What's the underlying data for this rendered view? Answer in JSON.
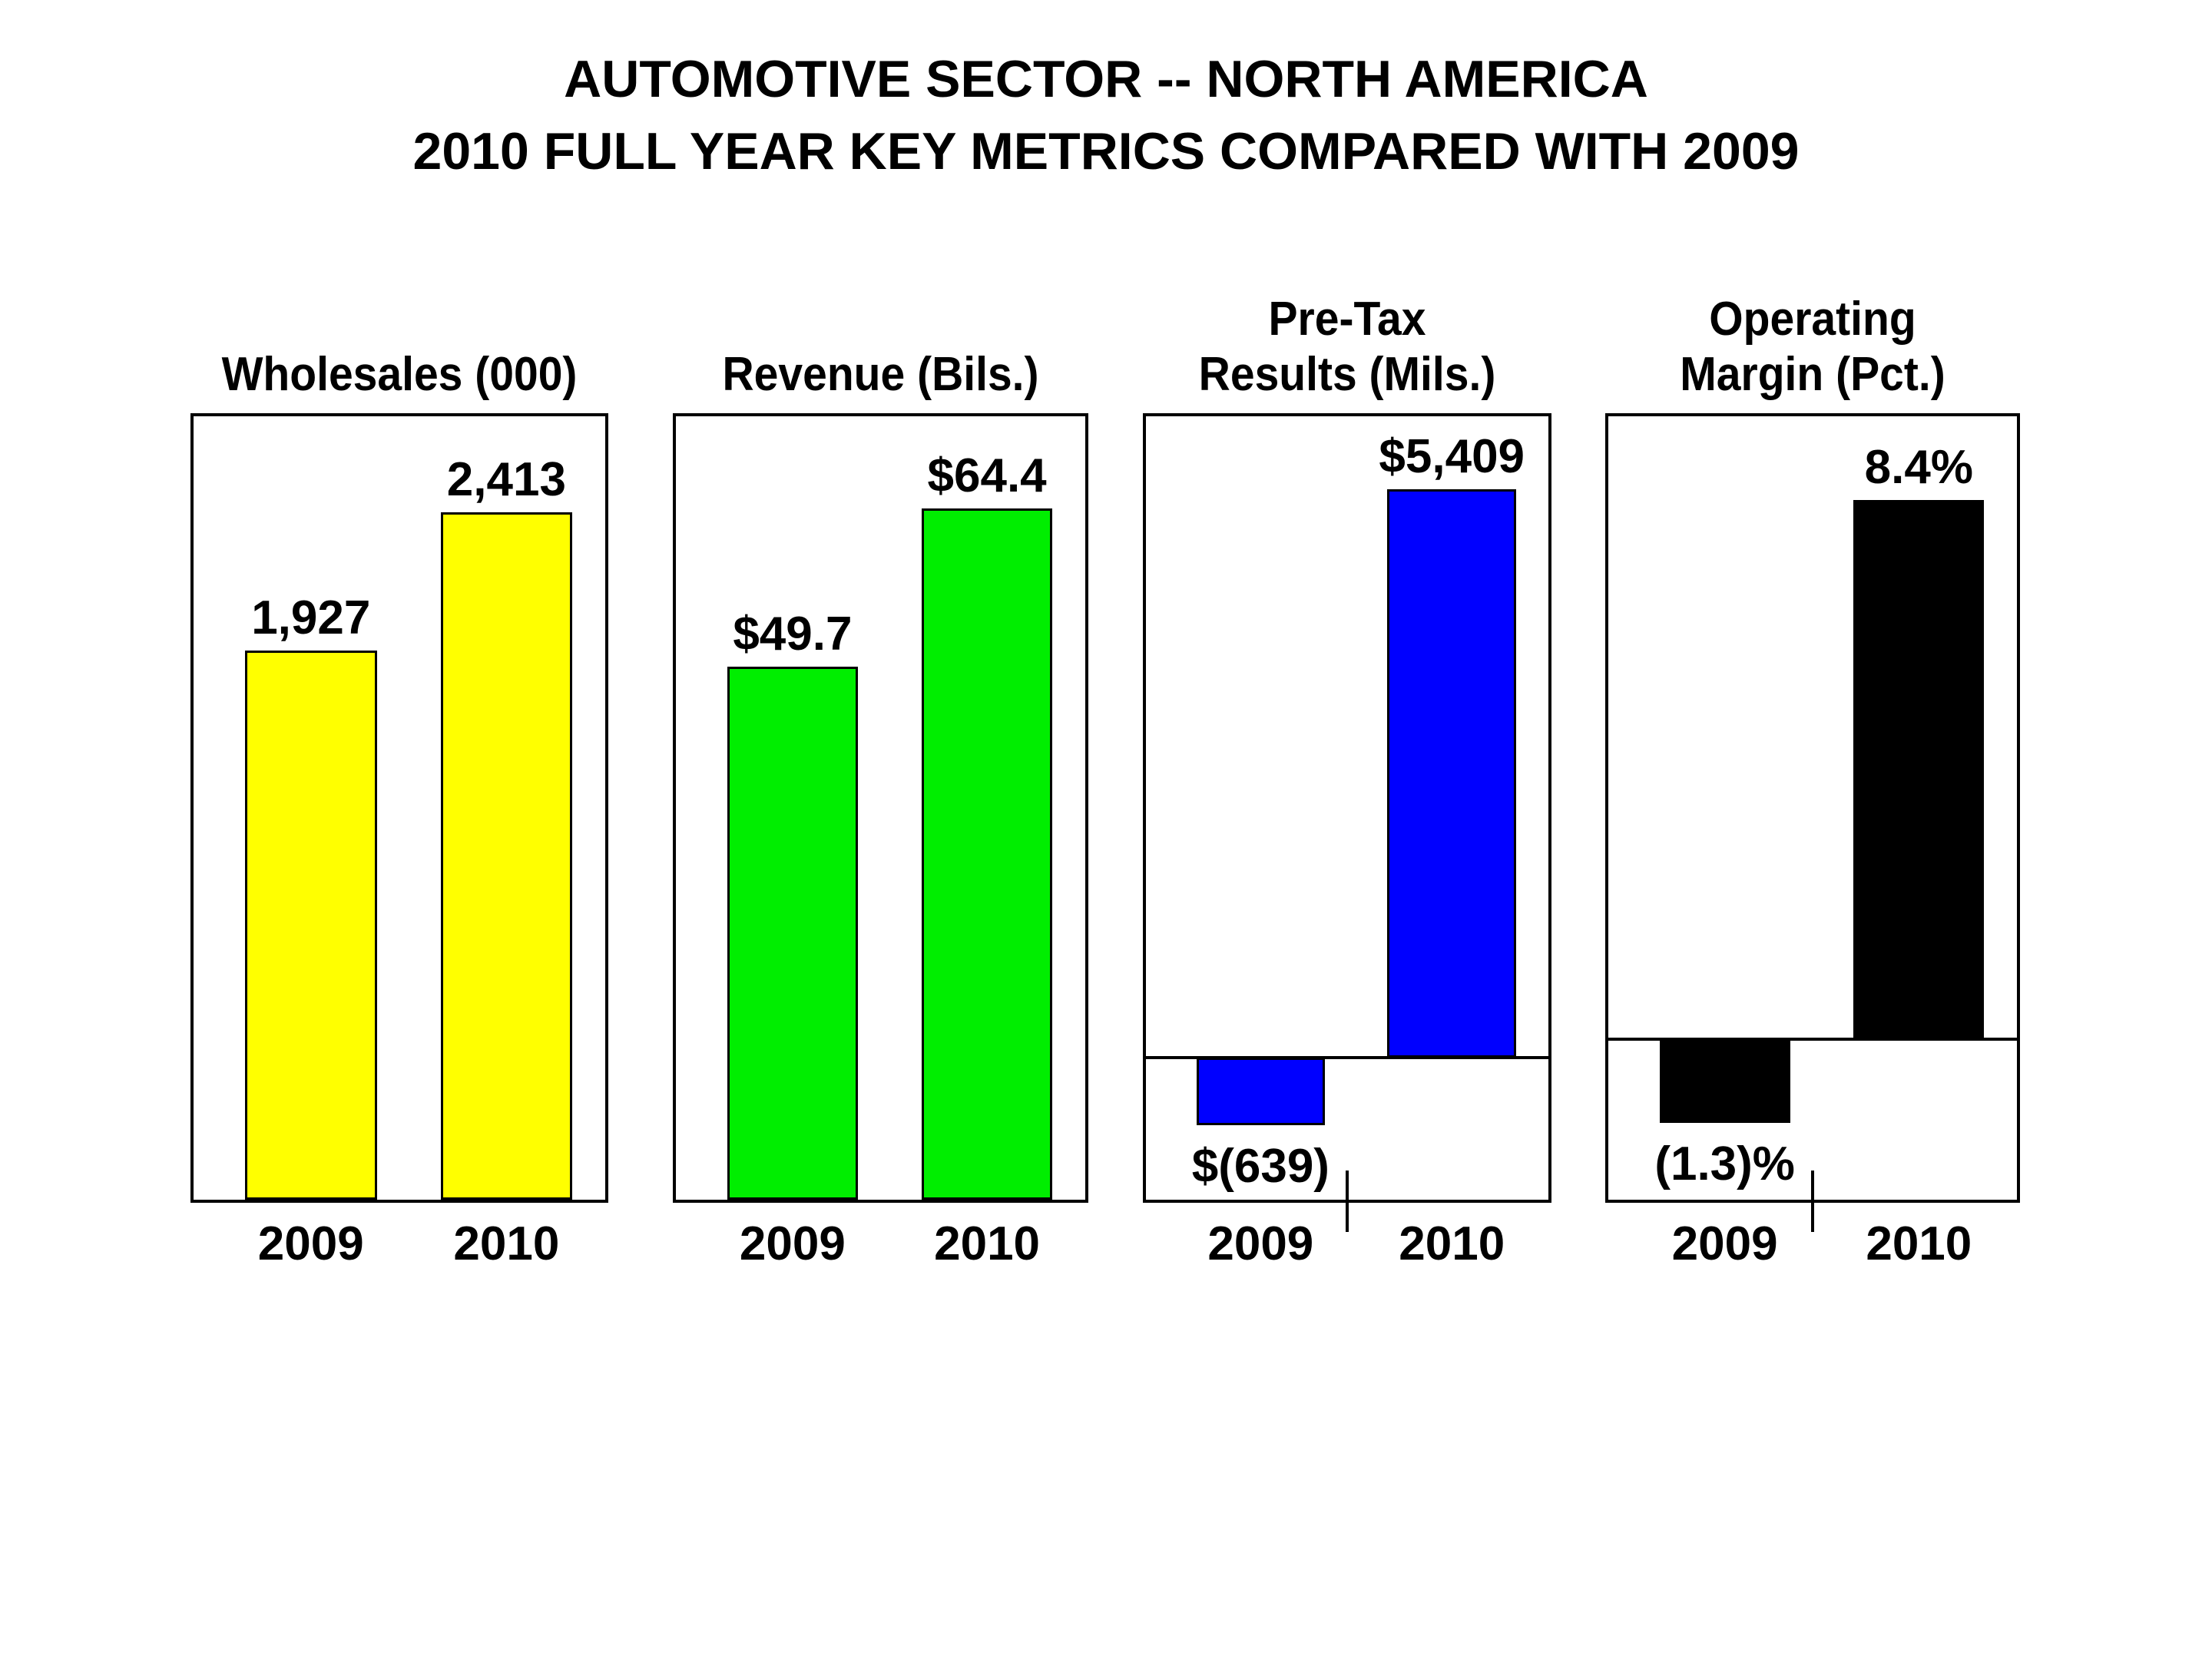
{
  "page": {
    "background": "#FFFFFF",
    "text_color": "#000000",
    "border_color": "#000000"
  },
  "title": {
    "line1": "AUTOMOTIVE SECTOR -- NORTH AMERICA",
    "line2": "2010 FULL YEAR KEY METRICS COMPARED WITH 2009"
  },
  "chart_data": [
    {
      "type": "bar",
      "title_lines": [
        "Wholesales (000)"
      ],
      "categories": [
        "2009",
        "2010"
      ],
      "values": [
        1927,
        2413
      ],
      "value_labels": [
        "1,927",
        "2,413"
      ],
      "bar_color": "#FFFF00",
      "ylim": [
        0,
        2750
      ],
      "zero_line_drawn": false,
      "grid": false,
      "legend": false
    },
    {
      "type": "bar",
      "title_lines": [
        "Revenue (Bils.)"
      ],
      "categories": [
        "2009",
        "2010"
      ],
      "values": [
        49.7,
        64.4
      ],
      "value_labels": [
        "$49.7",
        "$64.4"
      ],
      "bar_color": "#00EE00",
      "ylim": [
        0,
        73
      ],
      "zero_line_drawn": false,
      "grid": false,
      "legend": false
    },
    {
      "type": "bar",
      "title_lines": [
        "Pre-Tax",
        "Results (Mils.)"
      ],
      "categories": [
        "2009",
        "2010"
      ],
      "values": [
        -639,
        5409
      ],
      "value_labels": [
        "$(639)",
        "$5,409"
      ],
      "bar_color": "#0000FF",
      "ylim": [
        -1350,
        6100
      ],
      "zero_line_drawn": true,
      "grid": false,
      "legend": false
    },
    {
      "type": "bar",
      "title_lines": [
        "Operating",
        "Margin (Pct.)"
      ],
      "categories": [
        "2009",
        "2010"
      ],
      "values": [
        -1.3,
        8.4
      ],
      "value_labels": [
        "(1.3)%",
        "8.4%"
      ],
      "bar_color": "#000000",
      "ylim": [
        -2.5,
        9.7
      ],
      "zero_line_drawn": true,
      "grid": false,
      "legend": false
    }
  ]
}
